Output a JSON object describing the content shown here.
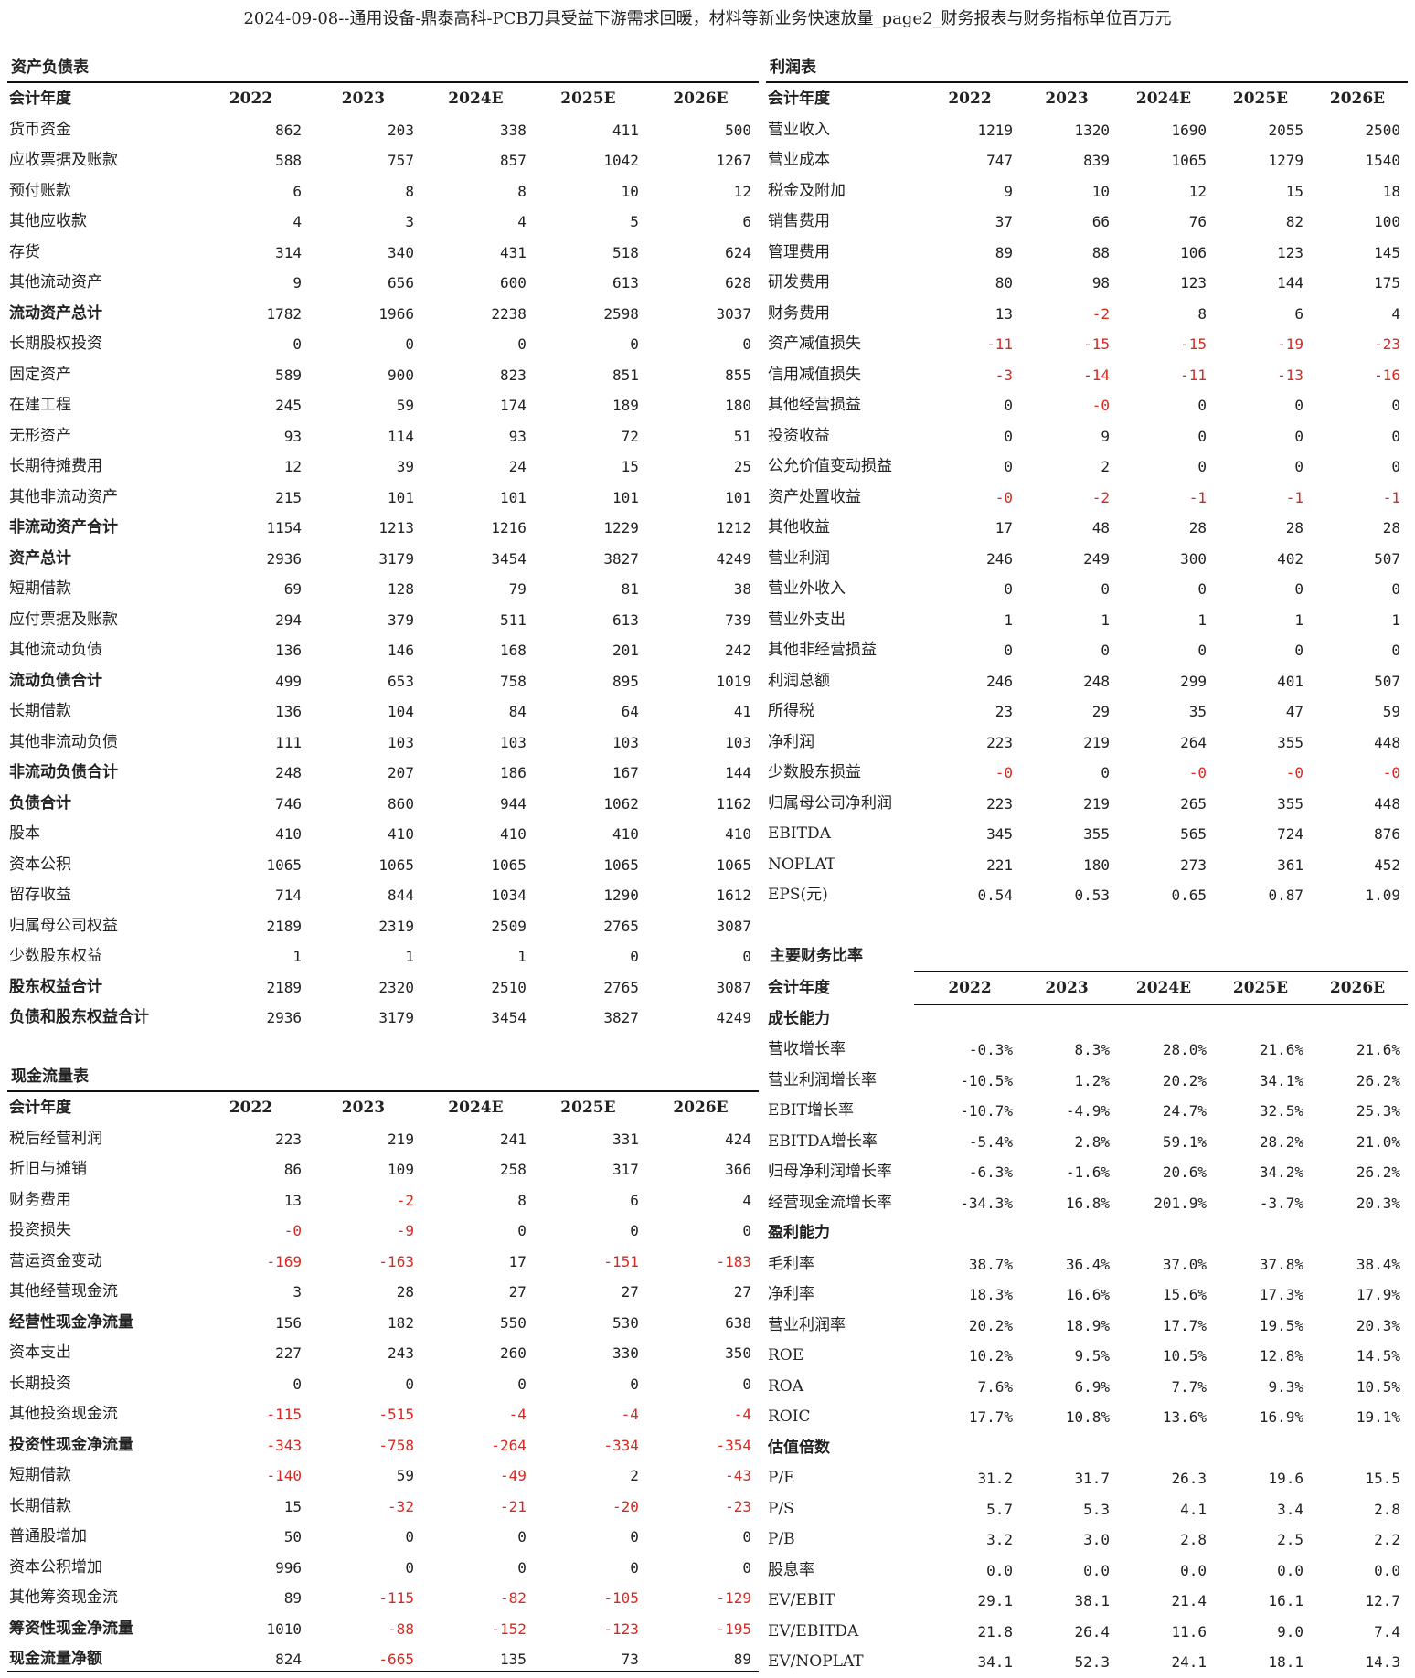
{
  "title": "2024-09-08--通用设备-鼎泰高科-PCB刀具受益下游需求回暖，材料等新业务快速放量_page2_财务报表与财务指标单位百万元",
  "balance_sheet": {
    "title": "资产负债表",
    "header": [
      "会计年度",
      "2022",
      "2023",
      "2024E",
      "2025E",
      "2026E"
    ],
    "rows": [
      {
        "label": "货币资金",
        "bold": false,
        "values": [
          "862",
          "203",
          "338",
          "411",
          "500"
        ]
      },
      {
        "label": "应收票据及账款",
        "bold": false,
        "values": [
          "588",
          "757",
          "857",
          "1042",
          "1267"
        ]
      },
      {
        "label": "预付账款",
        "bold": false,
        "values": [
          "6",
          "8",
          "8",
          "10",
          "12"
        ]
      },
      {
        "label": "其他应收款",
        "bold": false,
        "values": [
          "4",
          "3",
          "4",
          "5",
          "6"
        ]
      },
      {
        "label": "存货",
        "bold": false,
        "values": [
          "314",
          "340",
          "431",
          "518",
          "624"
        ]
      },
      {
        "label": "其他流动资产",
        "bold": false,
        "values": [
          "9",
          "656",
          "600",
          "613",
          "628"
        ]
      },
      {
        "label": "流动资产总计",
        "bold": true,
        "values": [
          "1782",
          "1966",
          "2238",
          "2598",
          "3037"
        ]
      },
      {
        "label": "长期股权投资",
        "bold": false,
        "values": [
          "0",
          "0",
          "0",
          "0",
          "0"
        ]
      },
      {
        "label": "固定资产",
        "bold": false,
        "values": [
          "589",
          "900",
          "823",
          "851",
          "855"
        ]
      },
      {
        "label": "在建工程",
        "bold": false,
        "values": [
          "245",
          "59",
          "174",
          "189",
          "180"
        ]
      },
      {
        "label": "无形资产",
        "bold": false,
        "values": [
          "93",
          "114",
          "93",
          "72",
          "51"
        ]
      },
      {
        "label": "长期待摊费用",
        "bold": false,
        "values": [
          "12",
          "39",
          "24",
          "15",
          "25"
        ]
      },
      {
        "label": "其他非流动资产",
        "bold": false,
        "values": [
          "215",
          "101",
          "101",
          "101",
          "101"
        ]
      },
      {
        "label": "非流动资产合计",
        "bold": true,
        "values": [
          "1154",
          "1213",
          "1216",
          "1229",
          "1212"
        ]
      },
      {
        "label": "资产总计",
        "bold": true,
        "values": [
          "2936",
          "3179",
          "3454",
          "3827",
          "4249"
        ]
      },
      {
        "label": "短期借款",
        "bold": false,
        "values": [
          "69",
          "128",
          "79",
          "81",
          "38"
        ]
      },
      {
        "label": "应付票据及账款",
        "bold": false,
        "values": [
          "294",
          "379",
          "511",
          "613",
          "739"
        ]
      },
      {
        "label": "其他流动负债",
        "bold": false,
        "values": [
          "136",
          "146",
          "168",
          "201",
          "242"
        ]
      },
      {
        "label": "流动负债合计",
        "bold": true,
        "values": [
          "499",
          "653",
          "758",
          "895",
          "1019"
        ]
      },
      {
        "label": "长期借款",
        "bold": false,
        "values": [
          "136",
          "104",
          "84",
          "64",
          "41"
        ]
      },
      {
        "label": "其他非流动负债",
        "bold": false,
        "values": [
          "111",
          "103",
          "103",
          "103",
          "103"
        ]
      },
      {
        "label": "非流动负债合计",
        "bold": true,
        "values": [
          "248",
          "207",
          "186",
          "167",
          "144"
        ]
      },
      {
        "label": "负债合计",
        "bold": true,
        "values": [
          "746",
          "860",
          "944",
          "1062",
          "1162"
        ]
      },
      {
        "label": "股本",
        "bold": false,
        "values": [
          "410",
          "410",
          "410",
          "410",
          "410"
        ]
      },
      {
        "label": "资本公积",
        "bold": false,
        "values": [
          "1065",
          "1065",
          "1065",
          "1065",
          "1065"
        ]
      },
      {
        "label": "留存收益",
        "bold": false,
        "values": [
          "714",
          "844",
          "1034",
          "1290",
          "1612"
        ]
      },
      {
        "label": "归属母公司权益",
        "bold": false,
        "values": [
          "2189",
          "2319",
          "2509",
          "2765",
          "3087"
        ]
      },
      {
        "label": "少数股东权益",
        "bold": false,
        "values": [
          "1",
          "1",
          "1",
          "0",
          "0"
        ]
      },
      {
        "label": "股东权益合计",
        "bold": true,
        "values": [
          "2189",
          "2320",
          "2510",
          "2765",
          "3087"
        ]
      },
      {
        "label": "负债和股东权益合计",
        "bold": true,
        "values": [
          "2936",
          "3179",
          "3454",
          "3827",
          "4249"
        ]
      }
    ]
  },
  "income_statement": {
    "title": "利润表",
    "header": [
      "会计年度",
      "2022",
      "2023",
      "2024E",
      "2025E",
      "2026E"
    ],
    "rows": [
      {
        "label": "营业收入",
        "bold": false,
        "values": [
          "1219",
          "1320",
          "1690",
          "2055",
          "2500"
        ]
      },
      {
        "label": "营业成本",
        "bold": false,
        "values": [
          "747",
          "839",
          "1065",
          "1279",
          "1540"
        ]
      },
      {
        "label": "税金及附加",
        "bold": false,
        "values": [
          "9",
          "10",
          "12",
          "15",
          "18"
        ]
      },
      {
        "label": "销售费用",
        "bold": false,
        "values": [
          "37",
          "66",
          "76",
          "82",
          "100"
        ]
      },
      {
        "label": "管理费用",
        "bold": false,
        "values": [
          "89",
          "88",
          "106",
          "123",
          "145"
        ]
      },
      {
        "label": "研发费用",
        "bold": false,
        "values": [
          "80",
          "98",
          "123",
          "144",
          "175"
        ]
      },
      {
        "label": "财务费用",
        "bold": false,
        "values": [
          "13",
          "-2",
          "8",
          "6",
          "4"
        ]
      },
      {
        "label": "资产减值损失",
        "bold": false,
        "values": [
          "-11",
          "-15",
          "-15",
          "-19",
          "-23"
        ]
      },
      {
        "label": "信用减值损失",
        "bold": false,
        "values": [
          "-3",
          "-14",
          "-11",
          "-13",
          "-16"
        ]
      },
      {
        "label": "其他经营损益",
        "bold": false,
        "values": [
          "0",
          "-0",
          "0",
          "0",
          "0"
        ]
      },
      {
        "label": "投资收益",
        "bold": false,
        "values": [
          "0",
          "9",
          "0",
          "0",
          "0"
        ]
      },
      {
        "label": "公允价值变动损益",
        "bold": false,
        "values": [
          "0",
          "2",
          "0",
          "0",
          "0"
        ]
      },
      {
        "label": "资产处置收益",
        "bold": false,
        "values": [
          "-0",
          "-2",
          "-1",
          "-1",
          "-1"
        ]
      },
      {
        "label": "其他收益",
        "bold": false,
        "values": [
          "17",
          "48",
          "28",
          "28",
          "28"
        ]
      },
      {
        "label": "营业利润",
        "bold": false,
        "values": [
          "246",
          "249",
          "300",
          "402",
          "507"
        ]
      },
      {
        "label": "营业外收入",
        "bold": false,
        "values": [
          "0",
          "0",
          "0",
          "0",
          "0"
        ]
      },
      {
        "label": "营业外支出",
        "bold": false,
        "values": [
          "1",
          "1",
          "1",
          "1",
          "1"
        ]
      },
      {
        "label": "其他非经营损益",
        "bold": false,
        "values": [
          "0",
          "0",
          "0",
          "0",
          "0"
        ]
      },
      {
        "label": "利润总额",
        "bold": false,
        "values": [
          "246",
          "248",
          "299",
          "401",
          "507"
        ]
      },
      {
        "label": "所得税",
        "bold": false,
        "values": [
          "23",
          "29",
          "35",
          "47",
          "59"
        ]
      },
      {
        "label": "净利润",
        "bold": false,
        "values": [
          "223",
          "219",
          "264",
          "355",
          "448"
        ]
      },
      {
        "label": "少数股东损益",
        "bold": false,
        "values": [
          "-0",
          "0",
          "-0",
          "-0",
          "-0"
        ]
      },
      {
        "label": "归属母公司净利润",
        "bold": false,
        "values": [
          "223",
          "219",
          "265",
          "355",
          "448"
        ]
      },
      {
        "label": "EBITDA",
        "bold": false,
        "values": [
          "345",
          "355",
          "565",
          "724",
          "876"
        ]
      },
      {
        "label": "NOPLAT",
        "bold": false,
        "values": [
          "221",
          "180",
          "273",
          "361",
          "452"
        ]
      },
      {
        "label": "EPS(元)",
        "bold": false,
        "values": [
          "0.54",
          "0.53",
          "0.65",
          "0.87",
          "1.09"
        ]
      }
    ]
  },
  "cash_flow": {
    "title": "现金流量表",
    "header": [
      "会计年度",
      "2022",
      "2023",
      "2024E",
      "2025E",
      "2026E"
    ],
    "rows": [
      {
        "label": "税后经营利润",
        "bold": false,
        "values": [
          "223",
          "219",
          "241",
          "331",
          "424"
        ]
      },
      {
        "label": "折旧与摊销",
        "bold": false,
        "values": [
          "86",
          "109",
          "258",
          "317",
          "366"
        ]
      },
      {
        "label": "财务费用",
        "bold": false,
        "values": [
          "13",
          "-2",
          "8",
          "6",
          "4"
        ]
      },
      {
        "label": "投资损失",
        "bold": false,
        "values": [
          "-0",
          "-9",
          "0",
          "0",
          "0"
        ]
      },
      {
        "label": "营运资金变动",
        "bold": false,
        "values": [
          "-169",
          "-163",
          "17",
          "-151",
          "-183"
        ]
      },
      {
        "label": "其他经营现金流",
        "bold": false,
        "values": [
          "3",
          "28",
          "27",
          "27",
          "27"
        ]
      },
      {
        "label": "经营性现金净流量",
        "bold": true,
        "values": [
          "156",
          "182",
          "550",
          "530",
          "638"
        ]
      },
      {
        "label": "资本支出",
        "bold": false,
        "values": [
          "227",
          "243",
          "260",
          "330",
          "350"
        ]
      },
      {
        "label": "长期投资",
        "bold": false,
        "values": [
          "0",
          "0",
          "0",
          "0",
          "0"
        ]
      },
      {
        "label": "其他投资现金流",
        "bold": false,
        "values": [
          "-115",
          "-515",
          "-4",
          "-4",
          "-4"
        ]
      },
      {
        "label": "投资性现金净流量",
        "bold": true,
        "values": [
          "-343",
          "-758",
          "-264",
          "-334",
          "-354"
        ]
      },
      {
        "label": "短期借款",
        "bold": false,
        "values": [
          "-140",
          "59",
          "-49",
          "2",
          "-43"
        ]
      },
      {
        "label": "长期借款",
        "bold": false,
        "values": [
          "15",
          "-32",
          "-21",
          "-20",
          "-23"
        ]
      },
      {
        "label": "普通股增加",
        "bold": false,
        "values": [
          "50",
          "0",
          "0",
          "0",
          "0"
        ]
      },
      {
        "label": "资本公积增加",
        "bold": false,
        "values": [
          "996",
          "0",
          "0",
          "0",
          "0"
        ]
      },
      {
        "label": "其他筹资现金流",
        "bold": false,
        "values": [
          "89",
          "-115",
          "-82",
          "-105",
          "-129"
        ]
      },
      {
        "label": "筹资性现金净流量",
        "bold": true,
        "values": [
          "1010",
          "-88",
          "-152",
          "-123",
          "-195"
        ]
      },
      {
        "label": "现金流量净额",
        "bold": true,
        "values": [
          "824",
          "-665",
          "135",
          "73",
          "89"
        ]
      }
    ]
  },
  "ratios": {
    "title": "主要财务比率",
    "header": [
      "会计年度",
      "2022",
      "2023",
      "2024E",
      "2025E",
      "2026E"
    ],
    "rows": [
      {
        "label": "成长能力",
        "section": true,
        "values": []
      },
      {
        "label": "营收增长率",
        "bold": false,
        "values": [
          "-0.3%",
          "8.3%",
          "28.0%",
          "21.6%",
          "21.6%"
        ]
      },
      {
        "label": "营业利润增长率",
        "bold": false,
        "values": [
          "-10.5%",
          "1.2%",
          "20.2%",
          "34.1%",
          "26.2%"
        ]
      },
      {
        "label": "EBIT增长率",
        "bold": false,
        "values": [
          "-10.7%",
          "-4.9%",
          "24.7%",
          "32.5%",
          "25.3%"
        ]
      },
      {
        "label": "EBITDA增长率",
        "bold": false,
        "values": [
          "-5.4%",
          "2.8%",
          "59.1%",
          "28.2%",
          "21.0%"
        ]
      },
      {
        "label": "归母净利润增长率",
        "bold": false,
        "values": [
          "-6.3%",
          "-1.6%",
          "20.6%",
          "34.2%",
          "26.2%"
        ]
      },
      {
        "label": "经营现金流增长率",
        "bold": false,
        "values": [
          "-34.3%",
          "16.8%",
          "201.9%",
          "-3.7%",
          "20.3%"
        ]
      },
      {
        "label": "盈利能力",
        "section": true,
        "values": []
      },
      {
        "label": "毛利率",
        "bold": false,
        "values": [
          "38.7%",
          "36.4%",
          "37.0%",
          "37.8%",
          "38.4%"
        ]
      },
      {
        "label": "净利率",
        "bold": false,
        "values": [
          "18.3%",
          "16.6%",
          "15.6%",
          "17.3%",
          "17.9%"
        ]
      },
      {
        "label": "营业利润率",
        "bold": false,
        "values": [
          "20.2%",
          "18.9%",
          "17.7%",
          "19.5%",
          "20.3%"
        ]
      },
      {
        "label": "ROE",
        "bold": false,
        "values": [
          "10.2%",
          "9.5%",
          "10.5%",
          "12.8%",
          "14.5%"
        ]
      },
      {
        "label": "ROA",
        "bold": false,
        "values": [
          "7.6%",
          "6.9%",
          "7.7%",
          "9.3%",
          "10.5%"
        ]
      },
      {
        "label": "ROIC",
        "bold": false,
        "values": [
          "17.7%",
          "10.8%",
          "13.6%",
          "16.9%",
          "19.1%"
        ]
      },
      {
        "label": "估值倍数",
        "section": true,
        "values": []
      },
      {
        "label": "P/E",
        "bold": false,
        "values": [
          "31.2",
          "31.7",
          "26.3",
          "19.6",
          "15.5"
        ]
      },
      {
        "label": "P/S",
        "bold": false,
        "values": [
          "5.7",
          "5.3",
          "4.1",
          "3.4",
          "2.8"
        ]
      },
      {
        "label": "P/B",
        "bold": false,
        "values": [
          "3.2",
          "3.0",
          "2.8",
          "2.5",
          "2.2"
        ]
      },
      {
        "label": "股息率",
        "bold": false,
        "values": [
          "0.0",
          "0.0",
          "0.0",
          "0.0",
          "0.0"
        ]
      },
      {
        "label": "EV/EBIT",
        "bold": false,
        "values": [
          "29.1",
          "38.1",
          "21.4",
          "16.1",
          "12.7"
        ]
      },
      {
        "label": "EV/EBITDA",
        "bold": false,
        "values": [
          "21.8",
          "26.4",
          "11.6",
          "9.0",
          "7.4"
        ]
      },
      {
        "label": "EV/NOPLAT",
        "bold": false,
        "values": [
          "34.1",
          "52.3",
          "24.1",
          "18.1",
          "14.3"
        ]
      }
    ]
  }
}
